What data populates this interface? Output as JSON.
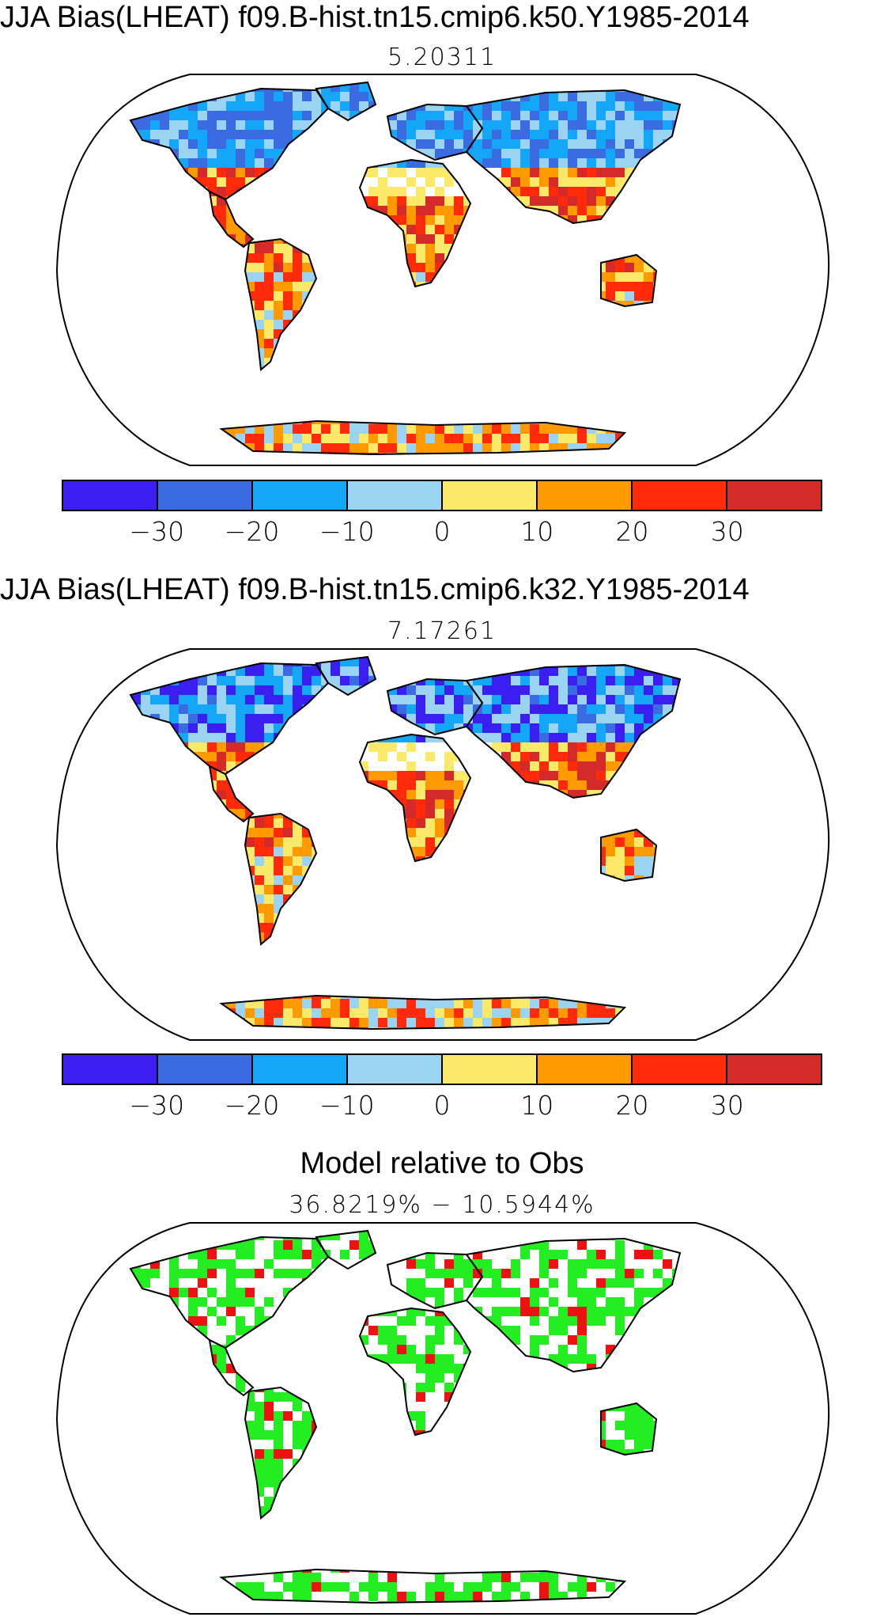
{
  "panels": [
    {
      "title": "JJA Bias(LHEAT) f09.B-hist.tn15.cmip6.k50.Y1985-2014",
      "subtitle": "5.20311",
      "palette": "bias"
    },
    {
      "title": "JJA Bias(LHEAT) f09.B-hist.tn15.cmip6.k32.Y1985-2014",
      "subtitle": "7.17261",
      "palette": "bias"
    },
    {
      "title": "Model relative to Obs",
      "subtitle": "36.8219%  −  10.5944%",
      "palette": "relative"
    }
  ],
  "colorbar": {
    "colors": [
      "#3a1ff0",
      "#3a6be0",
      "#14a6f7",
      "#9bd3f2",
      "#fbe96a",
      "#ff9a00",
      "#ff2a0a",
      "#d42a2a"
    ],
    "tick_labels": [
      "−30",
      "−20",
      "−10",
      "0",
      "10",
      "20",
      "30"
    ]
  },
  "relative_colors": {
    "better": "#22ee22",
    "worse": "#ee1111"
  }
}
